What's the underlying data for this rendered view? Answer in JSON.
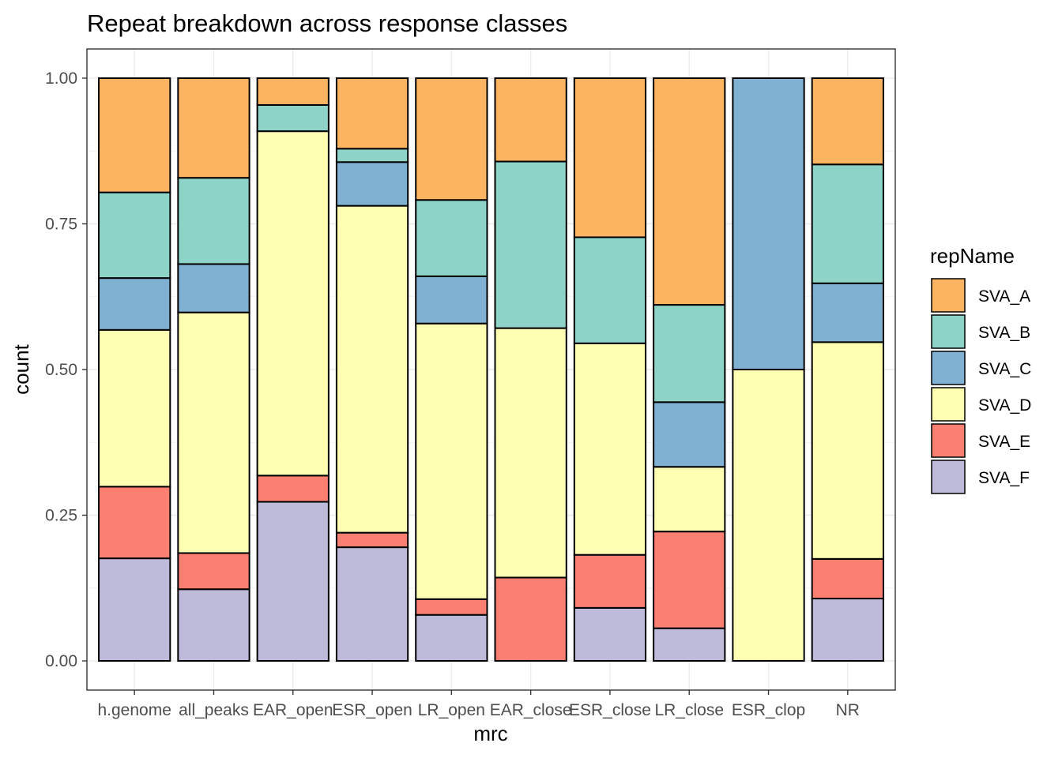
{
  "chart_data": {
    "type": "bar",
    "stacked": true,
    "position": "fill",
    "title": "Repeat breakdown across response classes",
    "xlabel": "mrc",
    "ylabel": "count",
    "ylim": [
      0,
      1
    ],
    "yticks": [
      "0.00",
      "0.25",
      "0.50",
      "0.75",
      "1.00"
    ],
    "grid": true,
    "legend": {
      "title": "repName",
      "placement": "right"
    },
    "categories": [
      "h.genome",
      "all_peaks",
      "EAR_open",
      "ESR_open",
      "LR_open",
      "EAR_close",
      "ESR_close",
      "LR_close",
      "ESR_clop",
      "NR"
    ],
    "series": [
      {
        "name": "SVA_A",
        "color": "#FDB462",
        "values": [
          0.196,
          0.171,
          0.046,
          0.121,
          0.209,
          0.143,
          0.273,
          0.389,
          0.0,
          0.148
        ]
      },
      {
        "name": "SVA_B",
        "color": "#8DD3C7",
        "values": [
          0.147,
          0.148,
          0.045,
          0.023,
          0.131,
          0.286,
          0.182,
          0.167,
          0.0,
          0.204
        ]
      },
      {
        "name": "SVA_C",
        "color": "#80B1D3",
        "values": [
          0.089,
          0.083,
          0.0,
          0.075,
          0.081,
          0.0,
          0.0,
          0.111,
          0.5,
          0.101
        ]
      },
      {
        "name": "SVA_D",
        "color": "#FFFFB3",
        "values": [
          0.269,
          0.413,
          0.591,
          0.561,
          0.473,
          0.428,
          0.363,
          0.111,
          0.5,
          0.372
        ]
      },
      {
        "name": "SVA_E",
        "color": "#FB8072",
        "values": [
          0.123,
          0.062,
          0.045,
          0.025,
          0.027,
          0.143,
          0.091,
          0.166,
          0.0,
          0.068
        ]
      },
      {
        "name": "SVA_F",
        "color": "#BEBADA",
        "values": [
          0.176,
          0.123,
          0.273,
          0.195,
          0.079,
          0.0,
          0.091,
          0.056,
          0.0,
          0.107
        ]
      }
    ]
  }
}
